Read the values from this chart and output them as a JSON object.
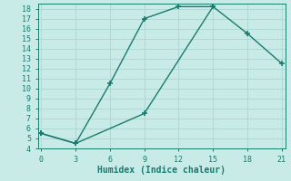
{
  "title": "",
  "xlabel": "Humidex (Indice chaleur)",
  "background_color": "#c8ebe8",
  "grid_color": "#b0d8d4",
  "line_color": "#1a7a6e",
  "line1_x": [
    0,
    3,
    6,
    9,
    12,
    15
  ],
  "line1_y": [
    5.5,
    4.5,
    10.5,
    17,
    18.2,
    18.2
  ],
  "line2_x": [
    0,
    3,
    9,
    15,
    18,
    21
  ],
  "line2_y": [
    5.5,
    4.5,
    7.5,
    18.2,
    15.5,
    12.5
  ],
  "xlim": [
    -0.3,
    21.3
  ],
  "ylim": [
    4,
    18.5
  ],
  "xticks": [
    0,
    3,
    6,
    9,
    12,
    15,
    18,
    21
  ],
  "yticks": [
    4,
    5,
    6,
    7,
    8,
    9,
    10,
    11,
    12,
    13,
    14,
    15,
    16,
    17,
    18
  ],
  "marker": "+",
  "markersize": 5,
  "linewidth": 1.0,
  "axis_fontsize": 7,
  "tick_fontsize": 6
}
